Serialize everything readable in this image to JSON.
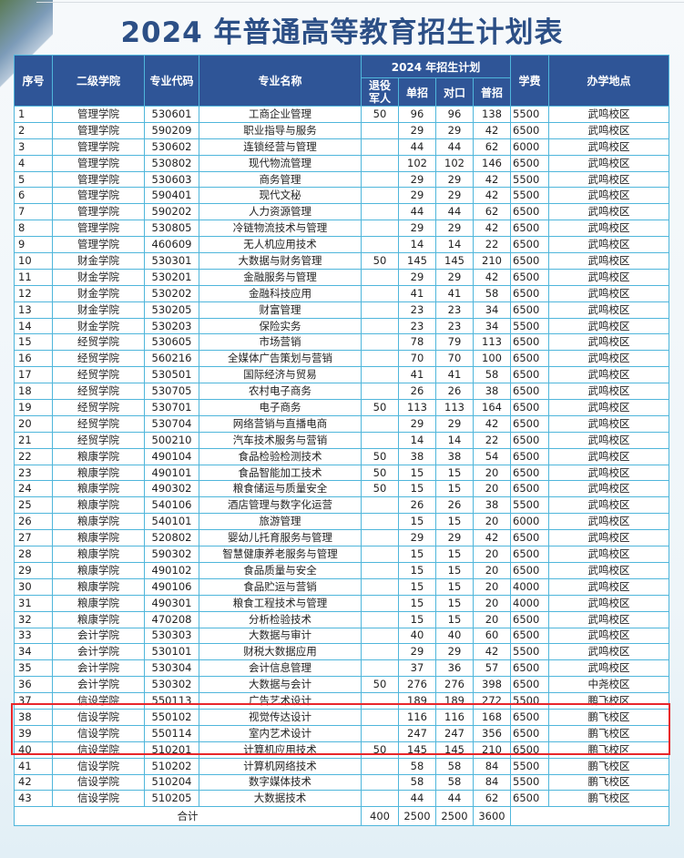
{
  "title": "2024 年普通高等教育招生计划表",
  "headers": {
    "index": "序号",
    "college": "二级学院",
    "code": "专业代码",
    "major": "专业名称",
    "plan_group": "2024 年招生计划",
    "veteran": "退役军人",
    "single": "单招",
    "vocational": "对口",
    "general": "普招",
    "fee": "学费",
    "campus": "办学地点"
  },
  "rows": [
    [
      "1",
      "管理学院",
      "530601",
      "工商企业管理",
      "50",
      "96",
      "96",
      "138",
      "5500",
      "武鸣校区"
    ],
    [
      "2",
      "管理学院",
      "590209",
      "职业指导与服务",
      "",
      "29",
      "29",
      "42",
      "6500",
      "武鸣校区"
    ],
    [
      "3",
      "管理学院",
      "530602",
      "连锁经营与管理",
      "",
      "44",
      "44",
      "62",
      "6000",
      "武鸣校区"
    ],
    [
      "4",
      "管理学院",
      "530802",
      "现代物流管理",
      "",
      "102",
      "102",
      "146",
      "6500",
      "武鸣校区"
    ],
    [
      "5",
      "管理学院",
      "530603",
      "商务管理",
      "",
      "29",
      "29",
      "42",
      "5500",
      "武鸣校区"
    ],
    [
      "6",
      "管理学院",
      "590401",
      "现代文秘",
      "",
      "29",
      "29",
      "42",
      "5500",
      "武鸣校区"
    ],
    [
      "7",
      "管理学院",
      "590202",
      "人力资源管理",
      "",
      "44",
      "44",
      "62",
      "6500",
      "武鸣校区"
    ],
    [
      "8",
      "管理学院",
      "530805",
      "冷链物流技术与管理",
      "",
      "29",
      "29",
      "42",
      "6500",
      "武鸣校区"
    ],
    [
      "9",
      "管理学院",
      "460609",
      "无人机应用技术",
      "",
      "14",
      "14",
      "22",
      "6500",
      "武鸣校区"
    ],
    [
      "10",
      "财金学院",
      "530301",
      "大数据与财务管理",
      "50",
      "145",
      "145",
      "210",
      "6500",
      "武鸣校区"
    ],
    [
      "11",
      "财金学院",
      "530201",
      "金融服务与管理",
      "",
      "29",
      "29",
      "42",
      "6500",
      "武鸣校区"
    ],
    [
      "12",
      "财金学院",
      "530202",
      "金融科技应用",
      "",
      "41",
      "41",
      "58",
      "6500",
      "武鸣校区"
    ],
    [
      "13",
      "财金学院",
      "530205",
      "财富管理",
      "",
      "23",
      "23",
      "34",
      "6500",
      "武鸣校区"
    ],
    [
      "14",
      "财金学院",
      "530203",
      "保险实务",
      "",
      "23",
      "23",
      "34",
      "5500",
      "武鸣校区"
    ],
    [
      "15",
      "经贸学院",
      "530605",
      "市场营销",
      "",
      "78",
      "79",
      "113",
      "6500",
      "武鸣校区"
    ],
    [
      "16",
      "经贸学院",
      "560216",
      "全媒体广告策划与营销",
      "",
      "70",
      "70",
      "100",
      "6500",
      "武鸣校区"
    ],
    [
      "17",
      "经贸学院",
      "530501",
      "国际经济与贸易",
      "",
      "41",
      "41",
      "58",
      "6500",
      "武鸣校区"
    ],
    [
      "18",
      "经贸学院",
      "530705",
      "农村电子商务",
      "",
      "26",
      "26",
      "38",
      "6500",
      "武鸣校区"
    ],
    [
      "19",
      "经贸学院",
      "530701",
      "电子商务",
      "50",
      "113",
      "113",
      "164",
      "6500",
      "武鸣校区"
    ],
    [
      "20",
      "经贸学院",
      "530704",
      "网络营销与直播电商",
      "",
      "29",
      "29",
      "42",
      "6500",
      "武鸣校区"
    ],
    [
      "21",
      "经贸学院",
      "500210",
      "汽车技术服务与营销",
      "",
      "14",
      "14",
      "22",
      "6500",
      "武鸣校区"
    ],
    [
      "22",
      "粮康学院",
      "490104",
      "食品检验检测技术",
      "50",
      "38",
      "38",
      "54",
      "6500",
      "武鸣校区"
    ],
    [
      "23",
      "粮康学院",
      "490101",
      "食品智能加工技术",
      "50",
      "15",
      "15",
      "20",
      "6500",
      "武鸣校区"
    ],
    [
      "24",
      "粮康学院",
      "490302",
      "粮食储运与质量安全",
      "50",
      "15",
      "15",
      "20",
      "6500",
      "武鸣校区"
    ],
    [
      "25",
      "粮康学院",
      "540106",
      "酒店管理与数字化运营",
      "",
      "26",
      "26",
      "38",
      "5500",
      "武鸣校区"
    ],
    [
      "26",
      "粮康学院",
      "540101",
      "旅游管理",
      "",
      "15",
      "15",
      "20",
      "6000",
      "武鸣校区"
    ],
    [
      "27",
      "粮康学院",
      "520802",
      "婴幼儿托育服务与管理",
      "",
      "29",
      "29",
      "42",
      "6500",
      "武鸣校区"
    ],
    [
      "28",
      "粮康学院",
      "590302",
      "智慧健康养老服务与管理",
      "",
      "15",
      "15",
      "20",
      "6500",
      "武鸣校区"
    ],
    [
      "29",
      "粮康学院",
      "490102",
      "食品质量与安全",
      "",
      "15",
      "15",
      "20",
      "6500",
      "武鸣校区"
    ],
    [
      "30",
      "粮康学院",
      "490106",
      "食品贮运与营销",
      "",
      "15",
      "15",
      "20",
      "4000",
      "武鸣校区"
    ],
    [
      "31",
      "粮康学院",
      "490301",
      "粮食工程技术与管理",
      "",
      "15",
      "15",
      "20",
      "4000",
      "武鸣校区"
    ],
    [
      "32",
      "粮康学院",
      "470208",
      "分析检验技术",
      "",
      "15",
      "15",
      "20",
      "6500",
      "武鸣校区"
    ],
    [
      "33",
      "会计学院",
      "530303",
      "大数据与审计",
      "",
      "40",
      "40",
      "60",
      "6500",
      "武鸣校区"
    ],
    [
      "34",
      "会计学院",
      "530101",
      "财税大数据应用",
      "",
      "29",
      "29",
      "42",
      "5500",
      "武鸣校区"
    ],
    [
      "35",
      "会计学院",
      "530304",
      "会计信息管理",
      "",
      "37",
      "36",
      "57",
      "6500",
      "武鸣校区"
    ],
    [
      "36",
      "会计学院",
      "530302",
      "大数据与会计",
      "50",
      "276",
      "276",
      "398",
      "6500",
      "中尧校区"
    ],
    [
      "37",
      "信设学院",
      "550113",
      "广告艺术设计",
      "",
      "189",
      "189",
      "272",
      "5500",
      "鹏飞校区"
    ],
    [
      "38",
      "信设学院",
      "550102",
      "视觉传达设计",
      "",
      "116",
      "116",
      "168",
      "6500",
      "鹏飞校区"
    ],
    [
      "39",
      "信设学院",
      "550114",
      "室内艺术设计",
      "",
      "247",
      "247",
      "356",
      "6500",
      "鹏飞校区"
    ],
    [
      "40",
      "信设学院",
      "510201",
      "计算机应用技术",
      "50",
      "145",
      "145",
      "210",
      "6500",
      "鹏飞校区"
    ],
    [
      "41",
      "信设学院",
      "510202",
      "计算机网络技术",
      "",
      "58",
      "58",
      "84",
      "5500",
      "鹏飞校区"
    ],
    [
      "42",
      "信设学院",
      "510204",
      "数字媒体技术",
      "",
      "58",
      "58",
      "84",
      "5500",
      "鹏飞校区"
    ],
    [
      "43",
      "信设学院",
      "510205",
      "大数据技术",
      "",
      "44",
      "44",
      "62",
      "6500",
      "鹏飞校区"
    ]
  ],
  "total": {
    "label": "合计",
    "veteran": "400",
    "single": "2500",
    "vocational": "2500",
    "general": "3600"
  },
  "highlighted_rows": [
    "37",
    "38",
    "39"
  ],
  "colors": {
    "header_bg": "#2f5597",
    "border": "#4fb6db",
    "title": "#2c4f86",
    "highlight": "#e8262b"
  }
}
